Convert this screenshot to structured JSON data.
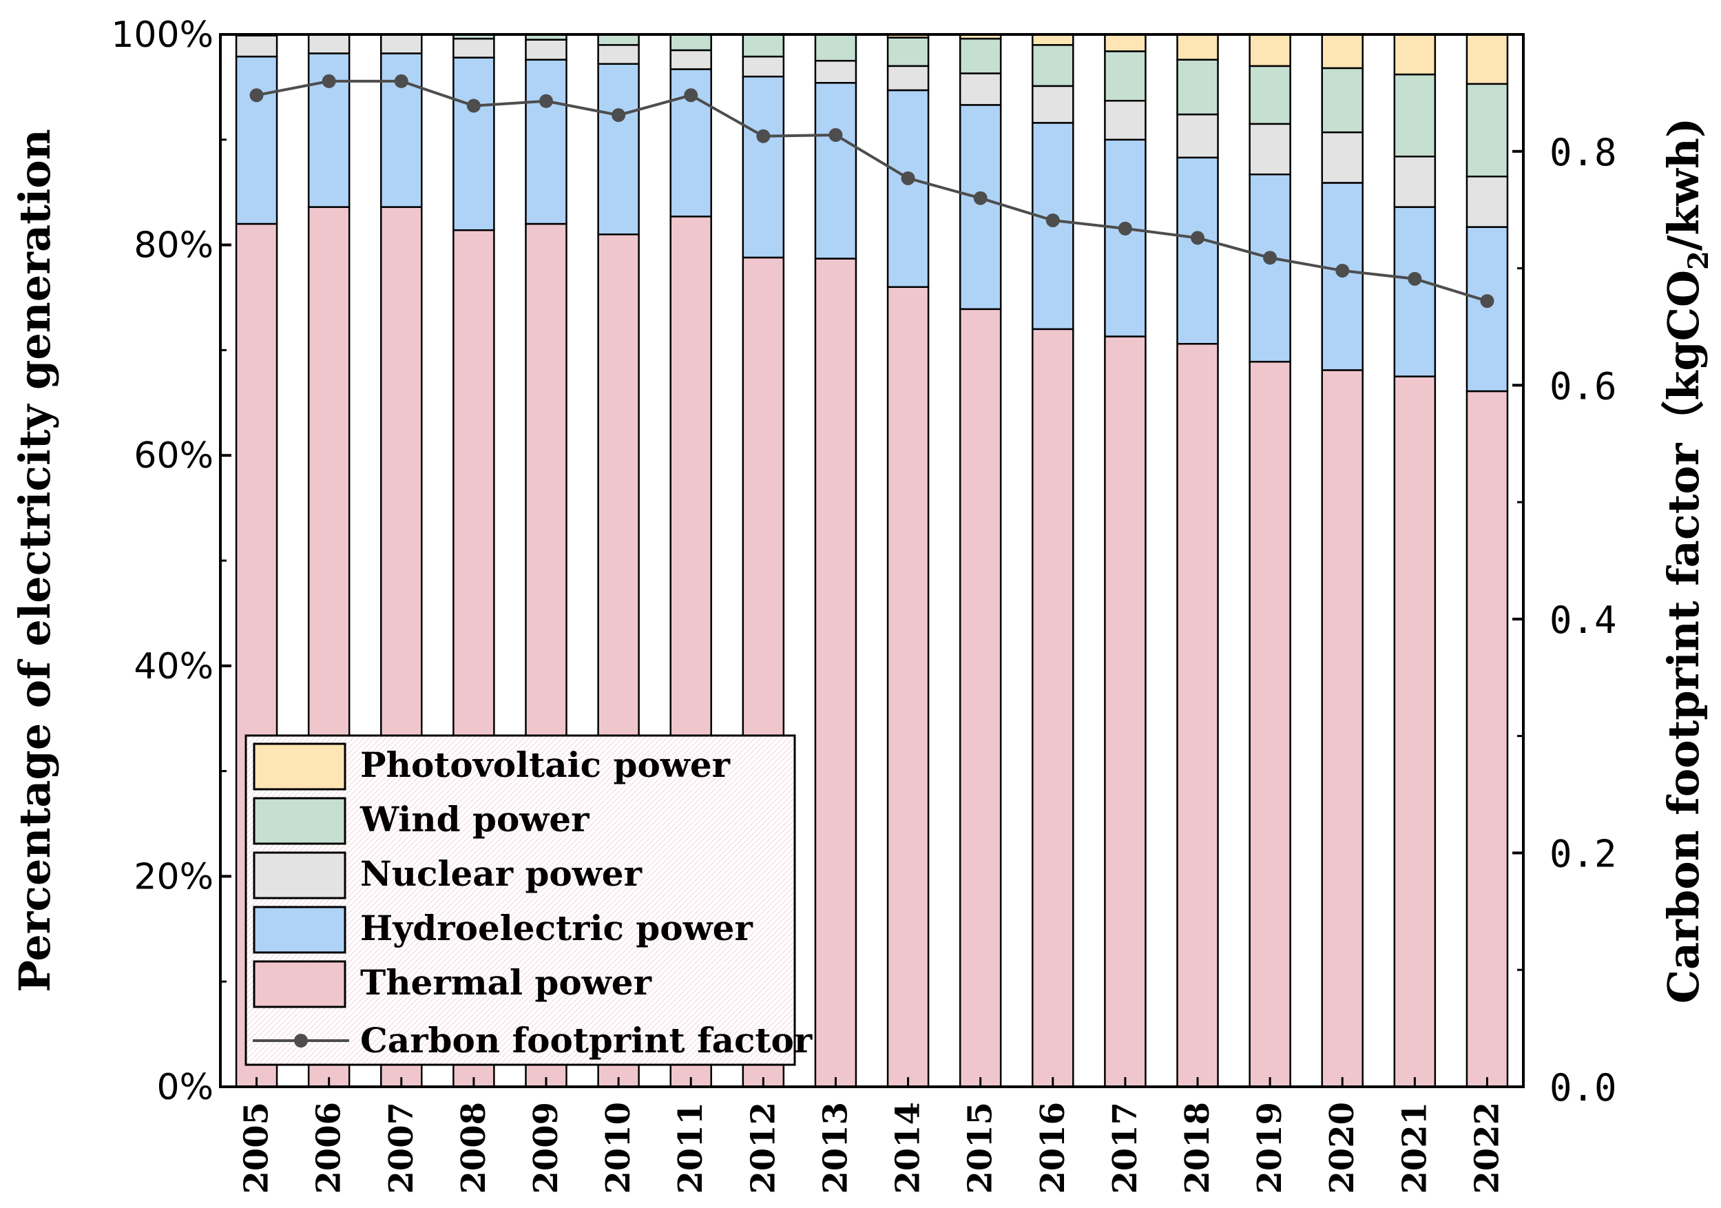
{
  "chart_data": {
    "type": "bar",
    "stacked": true,
    "categories": [
      "2005",
      "2006",
      "2007",
      "2008",
      "2009",
      "2010",
      "2011",
      "2012",
      "2013",
      "2014",
      "2015",
      "2016",
      "2017",
      "2018",
      "2019",
      "2020",
      "2021",
      "2022"
    ],
    "series": [
      {
        "name": "Thermal power",
        "color": "#F0C6CD",
        "values": [
          82.0,
          83.6,
          83.6,
          81.4,
          82.0,
          81.0,
          82.7,
          78.8,
          78.7,
          76.0,
          73.9,
          72.0,
          71.3,
          70.6,
          68.9,
          68.1,
          67.5,
          66.1
        ]
      },
      {
        "name": "Hydroelectric power",
        "color": "#AED3F7",
        "values": [
          15.9,
          14.6,
          14.6,
          16.4,
          15.6,
          16.2,
          14.0,
          17.2,
          16.7,
          18.7,
          19.4,
          19.6,
          18.7,
          17.7,
          17.8,
          17.8,
          16.1,
          15.6
        ]
      },
      {
        "name": "Nuclear power",
        "color": "#E3E3E3",
        "values": [
          2.0,
          1.8,
          1.8,
          1.8,
          1.9,
          1.8,
          1.8,
          1.9,
          2.1,
          2.3,
          3.0,
          3.5,
          3.7,
          4.1,
          4.8,
          4.8,
          4.8,
          4.8
        ]
      },
      {
        "name": "Wind power",
        "color": "#C5DFD0",
        "values": [
          0.1,
          0.0,
          0.0,
          0.4,
          0.5,
          1.0,
          1.5,
          2.1,
          2.5,
          2.7,
          3.3,
          3.9,
          4.7,
          5.2,
          5.5,
          6.1,
          7.8,
          8.8
        ]
      },
      {
        "name": "Photovoltaic power",
        "color": "#FDE5B4",
        "values": [
          0.0,
          0.0,
          0.0,
          0.0,
          0.0,
          0.0,
          0.0,
          0.0,
          0.0,
          0.3,
          0.4,
          1.0,
          1.6,
          2.4,
          3.0,
          3.2,
          3.8,
          4.7
        ]
      }
    ],
    "line_series": {
      "name": "Carbon footprint factor",
      "axis": "right",
      "color": "#4D4D4D",
      "values": [
        0.848,
        0.86,
        0.86,
        0.839,
        0.843,
        0.831,
        0.848,
        0.813,
        0.814,
        0.777,
        0.76,
        0.741,
        0.734,
        0.726,
        0.709,
        0.698,
        0.691,
        0.672
      ]
    },
    "title": "",
    "xlabel": "",
    "ylabel": "Percentage of electricity generation",
    "ylabel_right": "Carbon footprint factor（kgCO",
    "ylabel_right_subscript": "2",
    "ylabel_right_suffix": "/kwh)",
    "ylim": [
      0,
      100
    ],
    "ylim_right": [
      0,
      0.9
    ],
    "yticks": [
      "0%",
      "20%",
      "40%",
      "60%",
      "80%",
      "100%"
    ],
    "yticks_right": [
      "0.0",
      "0.2",
      "0.4",
      "0.6",
      "0.8"
    ],
    "legend": {
      "placement": "bottom-left",
      "order": [
        "Photovoltaic power",
        "Wind power",
        "Nuclear power",
        "Hydroelectric power",
        "Thermal power",
        "Carbon footprint factor"
      ]
    }
  }
}
